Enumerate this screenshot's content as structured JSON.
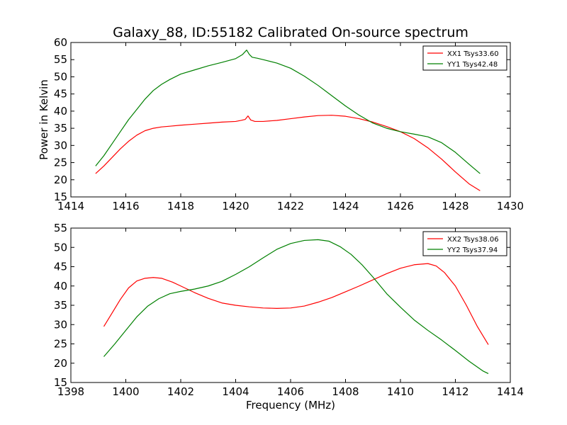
{
  "chart_data": [
    {
      "type": "line",
      "title": "Galaxy_88, ID:55182 Calibrated On-source spectrum",
      "xlabel": "",
      "ylabel": "Power in Kelvin",
      "xlim": [
        1414,
        1430
      ],
      "ylim": [
        15,
        60
      ],
      "xticks": [
        1414,
        1416,
        1418,
        1420,
        1422,
        1424,
        1426,
        1428,
        1430
      ],
      "yticks": [
        15,
        20,
        25,
        30,
        35,
        40,
        45,
        50,
        55,
        60
      ],
      "legend_position": "top-right",
      "grid": false,
      "series": [
        {
          "name": "XX1 Tsys33.60",
          "color": "#ff0000",
          "x": [
            1414.9,
            1415.2,
            1415.5,
            1415.8,
            1416.1,
            1416.4,
            1416.7,
            1417.0,
            1417.3,
            1417.6,
            1418.0,
            1418.5,
            1419.0,
            1419.5,
            1420.0,
            1420.2,
            1420.35,
            1420.45,
            1420.55,
            1420.7,
            1421.0,
            1421.5,
            1422.0,
            1422.5,
            1423.0,
            1423.5,
            1424.0,
            1424.5,
            1425.0,
            1425.5,
            1426.0,
            1426.5,
            1427.0,
            1427.5,
            1428.0,
            1428.5,
            1428.9
          ],
          "y": [
            21.8,
            24.0,
            26.5,
            29.0,
            31.2,
            33.0,
            34.3,
            35.0,
            35.4,
            35.6,
            35.9,
            36.2,
            36.5,
            36.8,
            37.0,
            37.3,
            37.6,
            38.6,
            37.4,
            37.0,
            37.0,
            37.3,
            37.8,
            38.3,
            38.7,
            38.8,
            38.5,
            37.8,
            36.8,
            35.5,
            34.0,
            32.0,
            29.3,
            26.0,
            22.3,
            18.8,
            16.8
          ]
        },
        {
          "name": "YY1 Tsys42.48",
          "color": "#008000",
          "x": [
            1414.9,
            1415.2,
            1415.5,
            1415.8,
            1416.1,
            1416.4,
            1416.7,
            1417.0,
            1417.3,
            1417.6,
            1418.0,
            1418.5,
            1419.0,
            1419.5,
            1420.0,
            1420.25,
            1420.4,
            1420.5,
            1420.6,
            1420.8,
            1421.0,
            1421.5,
            1422.0,
            1422.5,
            1423.0,
            1423.5,
            1424.0,
            1424.5,
            1425.0,
            1425.5,
            1426.0,
            1426.5,
            1427.0,
            1427.5,
            1428.0,
            1428.5,
            1428.9
          ],
          "y": [
            24.0,
            27.0,
            30.5,
            34.0,
            37.5,
            40.5,
            43.5,
            46.0,
            47.8,
            49.2,
            50.8,
            52.0,
            53.2,
            54.2,
            55.3,
            56.5,
            57.8,
            56.5,
            55.7,
            55.4,
            55.0,
            54.0,
            52.5,
            50.2,
            47.5,
            44.5,
            41.5,
            38.8,
            36.5,
            35.0,
            34.0,
            33.3,
            32.5,
            30.8,
            28.0,
            24.5,
            21.8
          ]
        }
      ]
    },
    {
      "type": "line",
      "title": "",
      "xlabel": "Frequency (MHz)",
      "ylabel": "",
      "xlim": [
        1398,
        1414
      ],
      "ylim": [
        15,
        55
      ],
      "xticks": [
        1398,
        1400,
        1402,
        1404,
        1406,
        1408,
        1410,
        1412,
        1414
      ],
      "yticks": [
        15,
        20,
        25,
        30,
        35,
        40,
        45,
        50,
        55
      ],
      "legend_position": "top-right",
      "grid": false,
      "series": [
        {
          "name": "XX2 Tsys38.06",
          "color": "#ff0000",
          "x": [
            1399.2,
            1399.5,
            1399.8,
            1400.1,
            1400.4,
            1400.7,
            1401.0,
            1401.3,
            1401.7,
            1402.0,
            1402.5,
            1403.0,
            1403.5,
            1404.0,
            1404.5,
            1405.0,
            1405.5,
            1406.0,
            1406.5,
            1407.0,
            1407.5,
            1408.0,
            1408.5,
            1409.0,
            1409.5,
            1410.0,
            1410.5,
            1411.0,
            1411.3,
            1411.6,
            1412.0,
            1412.4,
            1412.8,
            1413.2
          ],
          "y": [
            29.5,
            33.0,
            36.5,
            39.5,
            41.3,
            42.0,
            42.2,
            42.0,
            41.0,
            40.0,
            38.3,
            36.8,
            35.6,
            35.0,
            34.6,
            34.3,
            34.2,
            34.3,
            34.8,
            35.8,
            37.0,
            38.5,
            40.0,
            41.6,
            43.2,
            44.6,
            45.5,
            45.8,
            45.2,
            43.5,
            40.0,
            35.0,
            29.5,
            24.8
          ]
        },
        {
          "name": "YY2 Tsys37.94",
          "color": "#008000",
          "x": [
            1399.2,
            1399.6,
            1400.0,
            1400.4,
            1400.8,
            1401.2,
            1401.6,
            1402.0,
            1402.5,
            1403.0,
            1403.5,
            1404.0,
            1404.5,
            1405.0,
            1405.5,
            1406.0,
            1406.5,
            1407.0,
            1407.4,
            1407.8,
            1408.2,
            1408.6,
            1409.0,
            1409.5,
            1410.0,
            1410.5,
            1411.0,
            1411.5,
            1412.0,
            1412.5,
            1413.0,
            1413.2
          ],
          "y": [
            21.7,
            25.0,
            28.5,
            32.0,
            34.8,
            36.7,
            38.0,
            38.6,
            39.2,
            40.0,
            41.2,
            43.0,
            45.0,
            47.3,
            49.5,
            51.0,
            51.8,
            52.0,
            51.6,
            50.2,
            48.2,
            45.5,
            42.3,
            38.0,
            34.5,
            31.2,
            28.5,
            26.0,
            23.3,
            20.5,
            18.0,
            17.3
          ]
        }
      ]
    }
  ]
}
